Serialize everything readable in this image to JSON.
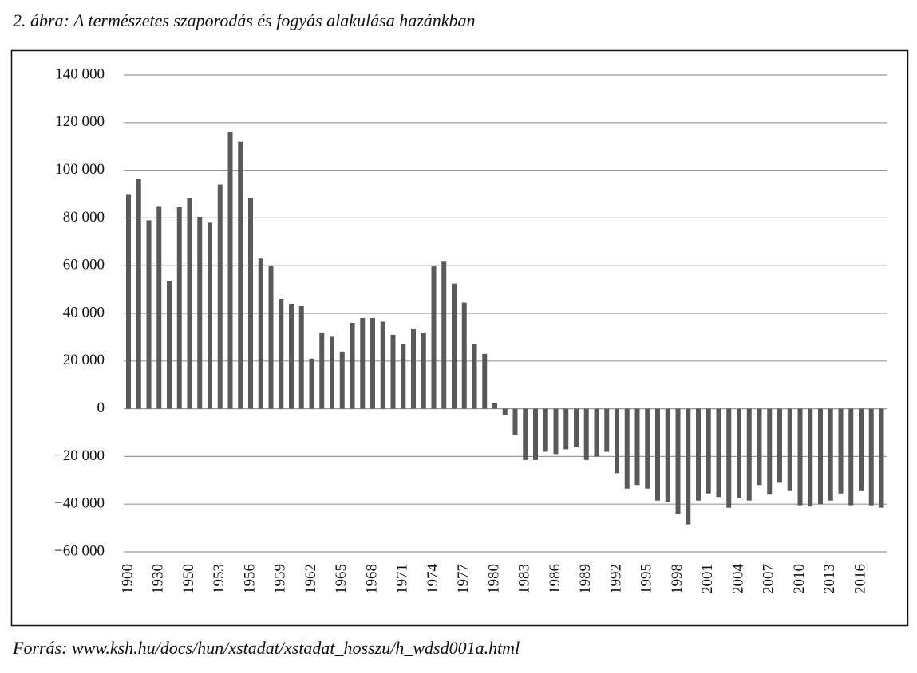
{
  "chart_data": {
    "type": "bar",
    "title": "2. ábra: A természetes szaporodás és fogyás alakulása hazánkban",
    "source": "Forrás: www.ksh.hu/docs/hun/xstadat/xstadat_hosszu/h_wdsd001a.html",
    "categories": [
      "1900",
      null,
      null,
      "1930",
      null,
      null,
      "1950",
      null,
      null,
      "1953",
      null,
      null,
      "1956",
      null,
      null,
      "1959",
      null,
      null,
      "1962",
      null,
      null,
      "1965",
      null,
      null,
      "1968",
      null,
      null,
      "1971",
      null,
      null,
      "1974",
      null,
      null,
      "1977",
      null,
      null,
      "1980",
      null,
      null,
      "1983",
      null,
      null,
      "1986",
      null,
      null,
      "1989",
      null,
      null,
      "1992",
      null,
      null,
      "1995",
      null,
      null,
      "1998",
      null,
      null,
      "2001",
      null,
      null,
      "2004",
      null,
      null,
      "2007",
      null,
      null,
      "2010",
      null,
      null,
      "2013",
      null,
      null,
      "2016",
      null,
      null
    ],
    "values": [
      90000,
      96500,
      79000,
      85000,
      53500,
      84500,
      88500,
      80500,
      78000,
      94000,
      116000,
      112000,
      88500,
      63000,
      60000,
      46000,
      44000,
      43000,
      21000,
      32000,
      30500,
      24000,
      36000,
      38000,
      38000,
      36500,
      31000,
      27000,
      33500,
      32000,
      60000,
      62000,
      52500,
      44500,
      27000,
      23000,
      2500,
      -2500,
      -11000,
      -21500,
      -21500,
      -18000,
      -19000,
      -17000,
      -16000,
      -21500,
      -20000,
      -18000,
      -27000,
      -33500,
      -32000,
      -33500,
      -38500,
      -39000,
      -44000,
      -48500,
      -38500,
      -35500,
      -37000,
      -41500,
      -37500,
      -38500,
      -32000,
      -36000,
      -31000,
      -34500,
      -40500,
      -41000,
      -40000,
      -38500,
      -35500,
      -40500,
      -34500,
      -40500,
      -41500
    ],
    "color": "#595959",
    "ylim": [
      -60000,
      140000
    ],
    "yticks": [
      {
        "value": -60000,
        "label": "−60 000"
      },
      {
        "value": -40000,
        "label": "−40 000"
      },
      {
        "value": -20000,
        "label": "−20 000"
      },
      0,
      {
        "value": 20000,
        "label": "20 000"
      },
      {
        "value": 40000,
        "label": "40 000"
      },
      {
        "value": 60000,
        "label": "60 000"
      },
      {
        "value": 80000,
        "label": "80 000"
      },
      {
        "value": 100000,
        "label": "100 000"
      },
      {
        "value": 120000,
        "label": "120 000"
      },
      {
        "value": 140000,
        "label": "140 000"
      }
    ],
    "grid": true
  }
}
